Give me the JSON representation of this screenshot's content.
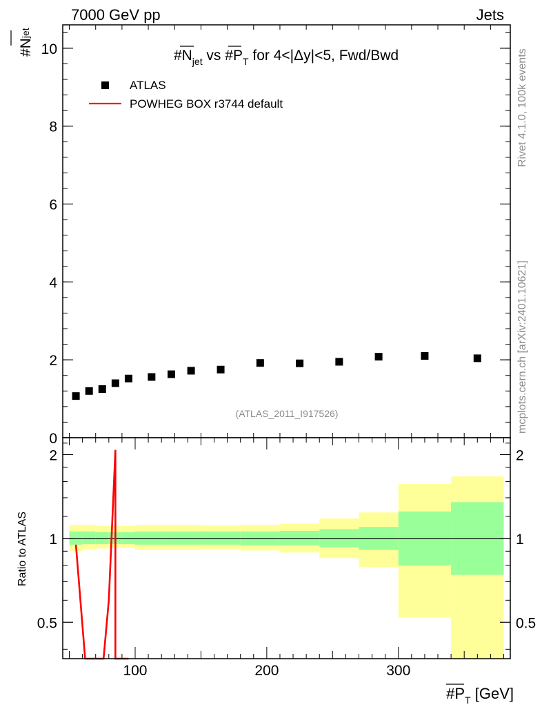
{
  "header": {
    "left": "7000 GeV pp",
    "right": "Jets"
  },
  "side_labels": {
    "rivet": "Rivet 4.1.0,  100k events",
    "mcplots": "mcplots.cern.ch [arXiv:2401.10621]"
  },
  "colors": {
    "data": "#000000",
    "mc": "#ff0000",
    "band_outer": "#ffff99",
    "band_inner": "#99ff99",
    "axis": "#000000",
    "watermark": "#8c8c8c"
  },
  "chart_data": [
    {
      "type": "scatter",
      "title": "#N_jet vs #P_T for 4<|Δy|<5, Fwd/Bwd",
      "title_parts": {
        "n": "#N",
        "n_sub": "jet",
        "vs": " vs #",
        "p": "P",
        "p_sub": "T",
        "rest": " for 4<|Δy|<5, Fwd/Bwd"
      },
      "ylabel": "#N_jet",
      "ylabel_parts": {
        "main": "#N",
        "sub": "jet"
      },
      "xlim": [
        45,
        385
      ],
      "ylim": [
        0,
        10.6
      ],
      "yticks": [
        0,
        2,
        4,
        6,
        8,
        10
      ],
      "ytick_labels": [
        "0",
        "2",
        "4",
        "6",
        "8",
        "10"
      ],
      "legend_position": "top-left",
      "legend": [
        {
          "label": "ATLAS",
          "style": "marker"
        },
        {
          "label": "POWHEG BOX r3744 default",
          "style": "line"
        }
      ],
      "annotation": "(ATLAS_2011_I917526)",
      "series": [
        {
          "name": "ATLAS",
          "x": [
            55,
            65,
            75,
            85,
            95,
            112.5,
            127.5,
            142.5,
            165,
            195,
            225,
            255,
            285,
            320,
            360
          ],
          "y": [
            1.07,
            1.2,
            1.25,
            1.4,
            1.52,
            1.56,
            1.63,
            1.72,
            1.75,
            1.92,
            1.91,
            1.95,
            2.08,
            2.1,
            2.04
          ]
        }
      ]
    },
    {
      "type": "area",
      "ylabel": "Ratio to ATLAS",
      "xlabel": "#P_T [GeV]",
      "xlabel_parts": {
        "pre": "#",
        "p": "P",
        "sub": "T",
        "post": " [GeV]"
      },
      "xlim": [
        45,
        385
      ],
      "xticks": [
        100,
        200,
        300
      ],
      "xtick_labels": [
        "100",
        "200",
        "300"
      ],
      "ylim": [
        0.37,
        2.3
      ],
      "yscale": "log",
      "yticks": [
        0.5,
        1,
        2
      ],
      "ytick_labels": [
        "0.5",
        "1",
        "2"
      ],
      "bins": [
        {
          "lo": 50,
          "hi": 60,
          "inner": [
            0.95,
            1.06
          ],
          "outer": [
            0.9,
            1.12
          ]
        },
        {
          "lo": 60,
          "hi": 70,
          "inner": [
            0.955,
            1.06
          ],
          "outer": [
            0.915,
            1.12
          ]
        },
        {
          "lo": 70,
          "hi": 80,
          "inner": [
            0.955,
            1.055
          ],
          "outer": [
            0.92,
            1.11
          ]
        },
        {
          "lo": 80,
          "hi": 90,
          "inner": [
            0.955,
            1.055
          ],
          "outer": [
            0.925,
            1.11
          ]
        },
        {
          "lo": 90,
          "hi": 100,
          "inner": [
            0.955,
            1.055
          ],
          "outer": [
            0.925,
            1.11
          ]
        },
        {
          "lo": 100,
          "hi": 125,
          "inner": [
            0.95,
            1.06
          ],
          "outer": [
            0.91,
            1.12
          ]
        },
        {
          "lo": 125,
          "hi": 150,
          "inner": [
            0.95,
            1.06
          ],
          "outer": [
            0.91,
            1.12
          ]
        },
        {
          "lo": 150,
          "hi": 180,
          "inner": [
            0.95,
            1.06
          ],
          "outer": [
            0.915,
            1.115
          ]
        },
        {
          "lo": 180,
          "hi": 210,
          "inner": [
            0.945,
            1.06
          ],
          "outer": [
            0.905,
            1.12
          ]
        },
        {
          "lo": 210,
          "hi": 240,
          "inner": [
            0.945,
            1.065
          ],
          "outer": [
            0.89,
            1.13
          ]
        },
        {
          "lo": 240,
          "hi": 270,
          "inner": [
            0.93,
            1.08
          ],
          "outer": [
            0.85,
            1.18
          ]
        },
        {
          "lo": 270,
          "hi": 300,
          "inner": [
            0.91,
            1.1
          ],
          "outer": [
            0.79,
            1.24
          ]
        },
        {
          "lo": 300,
          "hi": 340,
          "inner": [
            0.8,
            1.25
          ],
          "outer": [
            0.52,
            1.57
          ]
        },
        {
          "lo": 340,
          "hi": 380,
          "inner": [
            0.74,
            1.35
          ],
          "outer": [
            0.37,
            1.67
          ]
        }
      ],
      "mc_line": {
        "name": "POWHEG BOX r3744 default",
        "x": [
          55,
          62,
          76,
          80,
          85,
          85,
          90,
          95
        ],
        "y": [
          0.95,
          0.37,
          0.37,
          0.6,
          2.08,
          0.37,
          0.37,
          0.37
        ]
      }
    }
  ]
}
